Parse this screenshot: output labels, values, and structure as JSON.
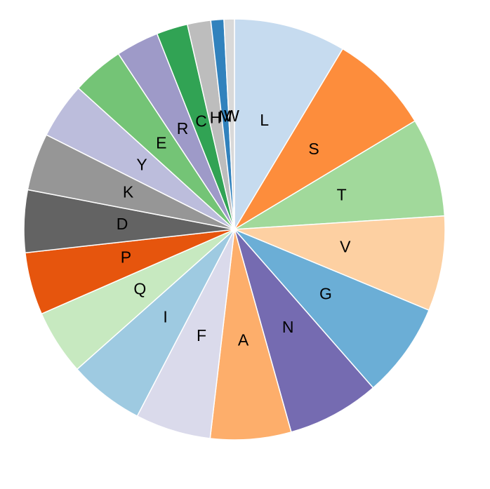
{
  "chart_data": {
    "type": "pie",
    "categories": [
      "L",
      "S",
      "T",
      "V",
      "G",
      "N",
      "A",
      "F",
      "I",
      "Q",
      "P",
      "D",
      "K",
      "Y",
      "E",
      "R",
      "C",
      "H",
      "M",
      "W"
    ],
    "values": [
      8.6,
      7.8,
      7.6,
      7.3,
      7.3,
      7.1,
      6.2,
      5.8,
      5.8,
      5.0,
      4.8,
      4.8,
      4.4,
      4.3,
      4.0,
      3.3,
      2.4,
      1.8,
      1.0,
      0.8
    ],
    "colors": [
      "#c6dbef",
      "#fd8d3c",
      "#a1d99b",
      "#fdd0a2",
      "#6baed6",
      "#756bb1",
      "#fdae6b",
      "#dadaeb",
      "#9ecae1",
      "#c7e9c0",
      "#e6550d",
      "#636363",
      "#969696",
      "#bcbddc",
      "#74c476",
      "#9e9ac8",
      "#31a354",
      "#bdbdbd",
      "#3182bd",
      "#d9d9d9"
    ]
  }
}
